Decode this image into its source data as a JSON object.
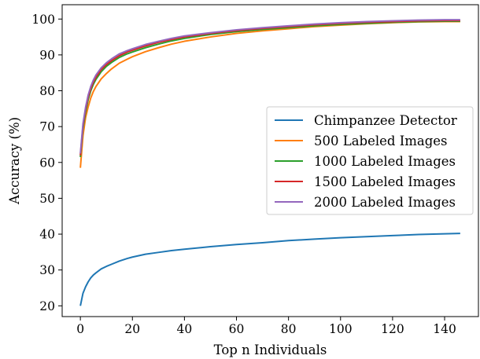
{
  "chart_data": {
    "type": "line",
    "title": "",
    "xlabel": "Top n Individuals",
    "ylabel": "Accuracy (%)",
    "xlim": [
      -7,
      153
    ],
    "ylim": [
      17,
      104
    ],
    "xticks": [
      0,
      20,
      40,
      60,
      80,
      100,
      120,
      140
    ],
    "yticks": [
      20,
      30,
      40,
      50,
      60,
      70,
      80,
      90,
      100
    ],
    "grid": false,
    "legend_position": "center-right",
    "x": [
      0,
      1,
      2,
      3,
      4,
      5,
      6,
      8,
      10,
      12,
      15,
      18,
      20,
      25,
      30,
      35,
      40,
      50,
      60,
      70,
      80,
      90,
      100,
      110,
      120,
      130,
      140,
      146
    ],
    "series": [
      {
        "name": "Chimpanzee Detector",
        "color": "#1f77b4",
        "values": [
          20.0,
          23.5,
          25.3,
          26.7,
          27.8,
          28.6,
          29.2,
          30.3,
          31.0,
          31.6,
          32.5,
          33.2,
          33.6,
          34.4,
          34.9,
          35.4,
          35.8,
          36.5,
          37.1,
          37.6,
          38.2,
          38.6,
          39.0,
          39.3,
          39.6,
          39.9,
          40.1,
          40.2
        ]
      },
      {
        "name": "500 Labeled Images",
        "color": "#ff7f0e",
        "values": [
          58.5,
          67.5,
          72.5,
          75.5,
          78.0,
          79.8,
          81.2,
          83.3,
          84.8,
          86.1,
          87.7,
          88.8,
          89.5,
          90.9,
          92.0,
          93.0,
          93.8,
          95.0,
          96.0,
          96.7,
          97.3,
          97.9,
          98.3,
          98.7,
          99.0,
          99.2,
          99.3,
          99.3
        ]
      },
      {
        "name": "1000 Labeled Images",
        "color": "#2ca02c",
        "values": [
          61.5,
          69.5,
          74.0,
          77.5,
          80.0,
          81.8,
          83.2,
          85.3,
          86.8,
          87.9,
          89.3,
          90.3,
          90.8,
          92.0,
          93.0,
          93.9,
          94.6,
          95.7,
          96.5,
          97.1,
          97.6,
          98.1,
          98.5,
          98.8,
          99.1,
          99.3,
          99.4,
          99.4
        ]
      },
      {
        "name": "1500 Labeled Images",
        "color": "#d62728",
        "values": [
          62.0,
          70.2,
          74.8,
          78.2,
          80.6,
          82.4,
          83.8,
          85.9,
          87.3,
          88.4,
          89.8,
          90.8,
          91.3,
          92.5,
          93.5,
          94.3,
          95.0,
          96.0,
          96.8,
          97.4,
          97.9,
          98.4,
          98.8,
          99.1,
          99.3,
          99.5,
          99.6,
          99.6
        ]
      },
      {
        "name": "2000 Labeled Images",
        "color": "#9467bd",
        "values": [
          62.5,
          70.8,
          75.4,
          78.8,
          81.2,
          83.0,
          84.4,
          86.4,
          87.8,
          88.9,
          90.3,
          91.2,
          91.7,
          92.9,
          93.8,
          94.6,
          95.3,
          96.2,
          97.0,
          97.6,
          98.1,
          98.6,
          99.0,
          99.3,
          99.5,
          99.7,
          99.8,
          99.8
        ]
      }
    ]
  }
}
